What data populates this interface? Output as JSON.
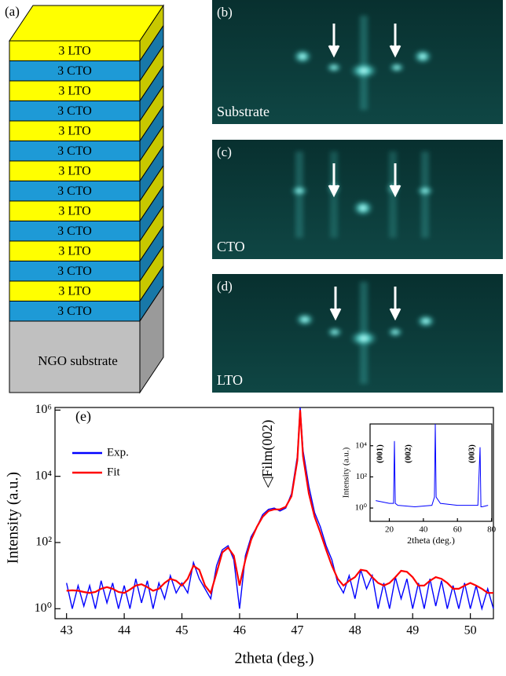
{
  "panel_a": {
    "label": "(a)",
    "layers": [
      "3 LTO",
      "3 CTO",
      "3 LTO",
      "3 CTO",
      "3 LTO",
      "3 CTO",
      "3 LTO",
      "3 CTO",
      "3 LTO",
      "3 CTO",
      "3 LTO",
      "3 CTO",
      "3 LTO",
      "3 CTO"
    ],
    "substrate": "NGO substrate"
  },
  "rheed": [
    {
      "label": "(b)",
      "caption": "Substrate"
    },
    {
      "label": "(c)",
      "caption": "CTO"
    },
    {
      "label": "(d)",
      "caption": "LTO"
    }
  ],
  "chart_data": [
    {
      "type": "line",
      "label": "(e)",
      "xlabel": "2theta (deg.)",
      "ylabel": "Intensity (a.u.)",
      "log_y": true,
      "legend": "upper left",
      "annotations": [
        "◁Film(002)"
      ],
      "xlim": [
        42.8,
        50.4
      ],
      "xticks": [
        43,
        44,
        45,
        46,
        47,
        48,
        49,
        50
      ],
      "ylim": [
        0.5,
        1200000
      ],
      "yticks": [
        {
          "value": 1,
          "label": "10⁰"
        },
        {
          "value": 100,
          "label": "10²"
        },
        {
          "value": 10000,
          "label": "10⁴"
        },
        {
          "value": 1000000,
          "label": "10⁶"
        }
      ],
      "x": [
        43.0,
        43.1,
        43.2,
        43.3,
        43.4,
        43.5,
        43.6,
        43.7,
        43.8,
        43.9,
        44.0,
        44.1,
        44.2,
        44.3,
        44.4,
        44.5,
        44.6,
        44.7,
        44.8,
        44.9,
        45.0,
        45.1,
        45.2,
        45.3,
        45.4,
        45.5,
        45.6,
        45.7,
        45.8,
        45.9,
        46.0,
        46.1,
        46.2,
        46.3,
        46.4,
        46.5,
        46.6,
        46.7,
        46.8,
        46.9,
        47.0,
        47.05,
        47.1,
        47.2,
        47.3,
        47.4,
        47.5,
        47.6,
        47.7,
        47.8,
        47.9,
        48.0,
        48.1,
        48.2,
        48.3,
        48.4,
        48.5,
        48.6,
        48.7,
        48.8,
        48.9,
        49.0,
        49.1,
        49.2,
        49.3,
        49.4,
        49.5,
        49.6,
        49.7,
        49.8,
        49.9,
        50.0,
        50.1,
        50.2,
        50.3,
        50.4
      ],
      "series": [
        {
          "name": "Exp.",
          "color": "#0000ff",
          "values": [
            6,
            1,
            5,
            1.2,
            5,
            1,
            7,
            1.5,
            6,
            1,
            5,
            1,
            8,
            1.5,
            7,
            1,
            6,
            2,
            10,
            3,
            6,
            3,
            25,
            8,
            4,
            2,
            20,
            60,
            80,
            30,
            1,
            40,
            150,
            300,
            700,
            1000,
            1100,
            900,
            1100,
            3000,
            40000,
            1200000,
            60000,
            5000,
            800,
            300,
            80,
            30,
            6,
            3,
            10,
            2,
            15,
            4,
            10,
            1,
            6,
            1,
            9,
            2,
            8,
            1,
            6,
            1,
            8,
            1.2,
            7,
            1,
            5,
            1,
            6,
            1,
            5,
            1,
            4,
            1
          ]
        },
        {
          "name": "Fit",
          "color": "#ff0000",
          "values": [
            3.5,
            3.6,
            3.5,
            3.2,
            3,
            3.2,
            4,
            4.5,
            4,
            3.2,
            3,
            3.8,
            5,
            5.5,
            4.5,
            3.5,
            4,
            6,
            8,
            7,
            5,
            8,
            20,
            15,
            5,
            3,
            12,
            50,
            70,
            40,
            5,
            30,
            120,
            300,
            600,
            900,
            1000,
            1000,
            1200,
            2500,
            30000,
            1000000,
            40000,
            3000,
            600,
            200,
            60,
            20,
            8,
            5,
            7,
            9,
            15,
            14,
            9,
            6,
            5,
            6,
            9,
            14,
            13,
            9,
            5,
            5,
            7,
            9,
            8,
            6,
            4,
            4,
            5,
            6,
            5,
            4,
            3,
            3
          ]
        }
      ]
    },
    {
      "type": "line",
      "xlabel": "2theta (deg.)",
      "ylabel": "Intensity (a.u.)",
      "log_y": true,
      "annotations": [
        "(001)",
        "(002)",
        "(003)"
      ],
      "xlim": [
        8.7,
        80.2
      ],
      "xticks": [
        20,
        40,
        60,
        80
      ],
      "ylim": [
        0.14,
        250000
      ],
      "yticks": [
        {
          "value": 1,
          "label": "10⁰"
        },
        {
          "value": 100,
          "label": "10²"
        },
        {
          "value": 10000,
          "label": "10⁴"
        }
      ],
      "x": [
        12,
        20,
        22.5,
        23,
        23.5,
        25,
        35,
        45,
        46.5,
        47,
        47.5,
        50,
        60,
        72,
        73.3,
        73.8,
        74.5,
        78
      ],
      "series": [
        {
          "color": "#0000ff",
          "values": [
            3,
            2,
            2,
            20000,
            2,
            1.5,
            1.2,
            1.5,
            5,
            250000,
            5,
            2,
            1.5,
            1.5,
            8000,
            1.2,
            1.2,
            1.5
          ]
        }
      ]
    }
  ]
}
